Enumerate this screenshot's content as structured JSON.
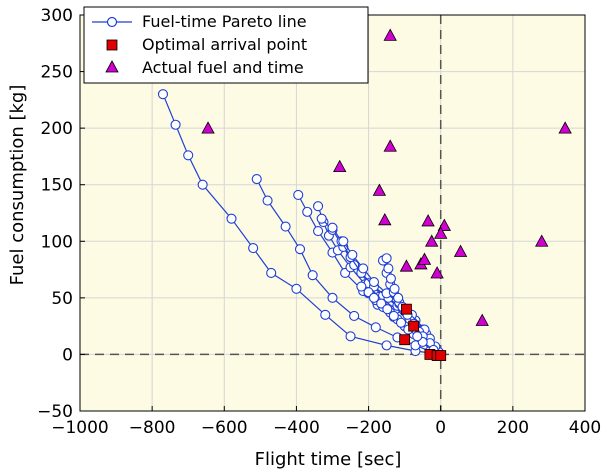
{
  "chart_data": {
    "type": "scatter",
    "title": "",
    "xlabel": "Flight time [sec]",
    "ylabel": "Fuel consumption [kg]",
    "xlim": [
      -1000,
      400
    ],
    "ylim": [
      -50,
      300
    ],
    "xticks": [
      -1000,
      -800,
      -600,
      -400,
      -200,
      0,
      200,
      400
    ],
    "yticks": [
      -50,
      0,
      50,
      100,
      150,
      200,
      250,
      300
    ],
    "xtick_labels": [
      "−1000",
      "−800",
      "−600",
      "−400",
      "−200",
      "0",
      "200",
      "400"
    ],
    "ytick_labels": [
      "−50",
      "0",
      "50",
      "100",
      "150",
      "200",
      "250",
      "300"
    ],
    "grid": true,
    "reference_lines": {
      "x": 0,
      "y": 0,
      "style": "dashed"
    },
    "background_color": "#fdfbe3",
    "legend": {
      "position": "top-left",
      "entries": [
        {
          "key": "pareto",
          "label": "Fuel-time Pareto line",
          "marker": "open-circle-line",
          "color": "#1f3fd6"
        },
        {
          "key": "optimal",
          "label": "Optimal arrival point",
          "marker": "square",
          "color": "#e00000"
        },
        {
          "key": "actual",
          "label": "Actual fuel and time",
          "marker": "triangle",
          "color": "#d000d0"
        }
      ]
    },
    "pareto_lines": [
      {
        "points": [
          [
            -770,
            230
          ],
          [
            -735,
            203
          ],
          [
            -700,
            176
          ],
          [
            -660,
            150
          ],
          [
            -580,
            120
          ],
          [
            -520,
            94
          ],
          [
            -470,
            72
          ],
          [
            -400,
            58
          ],
          [
            -320,
            35
          ],
          [
            -250,
            16
          ],
          [
            -150,
            8
          ],
          [
            -70,
            3
          ],
          [
            0,
            0
          ]
        ]
      },
      {
        "points": [
          [
            -510,
            155
          ],
          [
            -480,
            136
          ],
          [
            -430,
            113
          ],
          [
            -390,
            93
          ],
          [
            -355,
            70
          ],
          [
            -300,
            50
          ],
          [
            -240,
            34
          ],
          [
            -180,
            24
          ],
          [
            -120,
            15
          ],
          [
            -70,
            8
          ],
          [
            -30,
            3
          ],
          [
            0,
            0
          ]
        ]
      },
      {
        "points": [
          [
            -395,
            141
          ],
          [
            -370,
            126
          ],
          [
            -340,
            109
          ],
          [
            -300,
            90
          ],
          [
            -265,
            72
          ],
          [
            -215,
            56
          ],
          [
            -175,
            44
          ],
          [
            -130,
            33
          ],
          [
            -85,
            22
          ],
          [
            -45,
            12
          ],
          [
            -10,
            2
          ]
        ]
      },
      {
        "points": [
          [
            -340,
            131
          ],
          [
            -325,
            117
          ],
          [
            -310,
            105
          ],
          [
            -285,
            92
          ],
          [
            -250,
            77
          ],
          [
            -210,
            62
          ],
          [
            -170,
            51
          ],
          [
            -125,
            40
          ],
          [
            -80,
            30
          ],
          [
            -40,
            18
          ],
          [
            -5,
            2
          ]
        ]
      },
      {
        "points": [
          [
            -330,
            120
          ],
          [
            -300,
            110
          ],
          [
            -270,
            95
          ],
          [
            -240,
            79
          ],
          [
            -200,
            63
          ],
          [
            -160,
            52
          ],
          [
            -120,
            43
          ],
          [
            -85,
            34
          ],
          [
            -50,
            22
          ],
          [
            -15,
            7
          ]
        ]
      },
      {
        "points": [
          [
            -300,
            112
          ],
          [
            -275,
            100
          ],
          [
            -250,
            86
          ],
          [
            -220,
            72
          ],
          [
            -185,
            60
          ],
          [
            -145,
            50
          ],
          [
            -105,
            40
          ],
          [
            -70,
            30
          ],
          [
            -30,
            14
          ]
        ]
      },
      {
        "points": [
          [
            -270,
            100
          ],
          [
            -245,
            88
          ],
          [
            -215,
            76
          ],
          [
            -185,
            64
          ],
          [
            -150,
            54
          ],
          [
            -115,
            45
          ],
          [
            -80,
            35
          ],
          [
            -45,
            22
          ]
        ]
      },
      {
        "points": [
          [
            -160,
            83
          ],
          [
            -150,
            72
          ],
          [
            -140,
            62
          ],
          [
            -130,
            55
          ],
          [
            -115,
            46
          ],
          [
            -100,
            38
          ],
          [
            -85,
            30
          ],
          [
            -60,
            20
          ],
          [
            -30,
            10
          ]
        ]
      },
      {
        "points": [
          [
            -150,
            85
          ],
          [
            -145,
            76
          ],
          [
            -138,
            67
          ],
          [
            -128,
            58
          ],
          [
            -118,
            50
          ],
          [
            -106,
            42
          ],
          [
            -92,
            35
          ],
          [
            -75,
            27
          ],
          [
            -50,
            16
          ]
        ]
      },
      {
        "points": [
          [
            -220,
            60
          ],
          [
            -200,
            54
          ],
          [
            -180,
            48
          ],
          [
            -160,
            42
          ],
          [
            -140,
            37
          ],
          [
            -120,
            31
          ],
          [
            -100,
            25
          ],
          [
            -75,
            18
          ],
          [
            -50,
            11
          ],
          [
            -20,
            4
          ]
        ]
      },
      {
        "points": [
          [
            -200,
            55
          ],
          [
            -185,
            50
          ],
          [
            -165,
            45
          ],
          [
            -148,
            40
          ],
          [
            -130,
            34
          ],
          [
            -110,
            28
          ],
          [
            -90,
            22
          ],
          [
            -65,
            16
          ]
        ]
      }
    ],
    "optimal_points": [
      [
        -95,
        40
      ],
      [
        -75,
        25
      ],
      [
        -100,
        13
      ],
      [
        -30,
        0
      ],
      [
        -10,
        -1
      ],
      [
        0,
        -1
      ]
    ],
    "actual_points": [
      [
        -140,
        282
      ],
      [
        -645,
        200
      ],
      [
        -140,
        184
      ],
      [
        345,
        200
      ],
      [
        -280,
        166
      ],
      [
        -170,
        145
      ],
      [
        -155,
        119
      ],
      [
        -35,
        118
      ],
      [
        -25,
        100
      ],
      [
        10,
        114
      ],
      [
        0,
        107
      ],
      [
        280,
        100
      ],
      [
        -10,
        72
      ],
      [
        -95,
        78
      ],
      [
        -55,
        80
      ],
      [
        -45,
        84
      ],
      [
        55,
        91
      ],
      [
        115,
        30
      ]
    ]
  }
}
